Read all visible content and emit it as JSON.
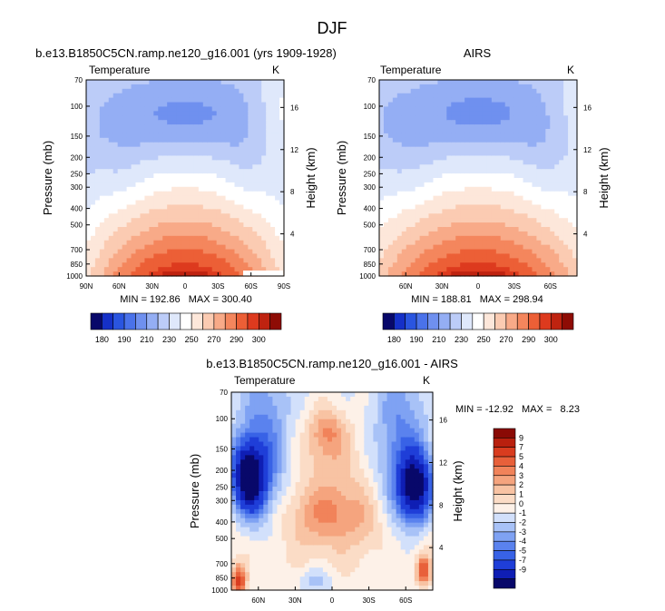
{
  "figure_title": "DJF",
  "colors": {
    "scale_abs": [
      "#08086a",
      "#1530c8",
      "#2a55e0",
      "#4a72ea",
      "#6f90ef",
      "#94aef4",
      "#bcccf8",
      "#dfe8fb",
      "#ffffff",
      "#fde7da",
      "#fbcbb2",
      "#f8aa88",
      "#f4865d",
      "#ec5f36",
      "#dd3a1e",
      "#bf2310",
      "#8e0c05"
    ],
    "scale_diff": [
      "#08086a",
      "#0f1eb4",
      "#1f3ed8",
      "#3862e6",
      "#5a82ee",
      "#7fa2f3",
      "#a8c2f7",
      "#d2e0fb",
      "#fdf1e8",
      "#fbdcc6",
      "#f8c3a3",
      "#f5a47e",
      "#f1835a",
      "#e8603a",
      "#d93c1f",
      "#b9200e",
      "#8a0a05"
    ]
  },
  "chart_data": [
    {
      "type": "filled-contour",
      "title": "b.e13.B1850C5CN.ramp.ne120_g16.001 (yrs 1909-1928)",
      "variable": "Temperature",
      "units": "K",
      "ylabel": "Pressure (mb)",
      "y2label": "Height (km)",
      "pressure_ticks": [
        "70",
        "100",
        "150",
        "200",
        "250",
        "300",
        "400",
        "500",
        "700",
        "850",
        "1000"
      ],
      "pressure_values": [
        70,
        100,
        150,
        200,
        250,
        300,
        400,
        500,
        700,
        850,
        1000
      ],
      "height_ticks": [
        "16",
        "12",
        "8",
        "4"
      ],
      "height_values": [
        16,
        12,
        8,
        4
      ],
      "lat_ticks": [
        "90N",
        "60N",
        "30N",
        "0",
        "30S",
        "60S",
        "90S"
      ],
      "lat_values": [
        90,
        60,
        30,
        0,
        -30,
        -60,
        -90
      ],
      "lat_range": [
        90,
        -90
      ],
      "levels": [
        180,
        185,
        190,
        195,
        200,
        210,
        220,
        230,
        240,
        250,
        260,
        270,
        280,
        290,
        295,
        300
      ],
      "min_max_text": "MIN = 192.86   MAX = 300.40",
      "min": 192.86,
      "max": 300.4,
      "colorbar_labels": [
        "180",
        "190",
        "210",
        "230",
        "250",
        "270",
        "290",
        "300"
      ]
    },
    {
      "type": "filled-contour",
      "title": "AIRS",
      "variable": "Temperature",
      "units": "K",
      "ylabel": "Pressure (mb)",
      "y2label": "Height (km)",
      "pressure_ticks": [
        "70",
        "100",
        "150",
        "200",
        "250",
        "300",
        "400",
        "500",
        "700",
        "850",
        "1000"
      ],
      "pressure_values": [
        70,
        100,
        150,
        200,
        250,
        300,
        400,
        500,
        700,
        850,
        1000
      ],
      "height_ticks": [
        "16",
        "12",
        "8",
        "4"
      ],
      "height_values": [
        16,
        12,
        8,
        4
      ],
      "lat_ticks": [
        "60N",
        "30N",
        "0",
        "30S",
        "60S"
      ],
      "lat_values": [
        60,
        30,
        0,
        -30,
        -60
      ],
      "lat_range": [
        82,
        -82
      ],
      "levels": [
        180,
        185,
        190,
        195,
        200,
        210,
        220,
        230,
        240,
        250,
        260,
        270,
        280,
        290,
        295,
        300
      ],
      "min_max_text": "MIN = 188.81   MAX = 298.94",
      "min": 188.81,
      "max": 298.94,
      "colorbar_labels": [
        "180",
        "190",
        "210",
        "230",
        "250",
        "270",
        "290",
        "300"
      ]
    },
    {
      "type": "filled-contour",
      "title": "b.e13.B1850C5CN.ramp.ne120_g16.001 - AIRS",
      "variable": "Temperature",
      "units": "K",
      "ylabel": "Pressure (mb)",
      "y2label": "Height (km)",
      "pressure_ticks": [
        "70",
        "100",
        "150",
        "200",
        "250",
        "300",
        "400",
        "500",
        "700",
        "850",
        "1000"
      ],
      "pressure_values": [
        70,
        100,
        150,
        200,
        250,
        300,
        400,
        500,
        700,
        850,
        1000
      ],
      "height_ticks": [
        "16",
        "12",
        "8",
        "4"
      ],
      "height_values": [
        16,
        12,
        8,
        4
      ],
      "lat_ticks": [
        "60N",
        "30N",
        "0",
        "30S",
        "60S"
      ],
      "lat_values": [
        60,
        30,
        0,
        -30,
        -60
      ],
      "lat_range": [
        82,
        -82
      ],
      "levels": [
        -9,
        -7,
        -5,
        -4,
        -3,
        -2,
        -1,
        0,
        1,
        2,
        3,
        4,
        5,
        7,
        9
      ],
      "min_max_text": "MIN = -12.92   MAX =   8.23",
      "min": -12.92,
      "max": 8.23,
      "colorbar_labels": [
        "9",
        "7",
        "5",
        "4",
        "3",
        "2",
        "1",
        "0",
        "-1",
        "-2",
        "-3",
        "-4",
        "-5",
        "-7",
        "-9"
      ]
    }
  ]
}
